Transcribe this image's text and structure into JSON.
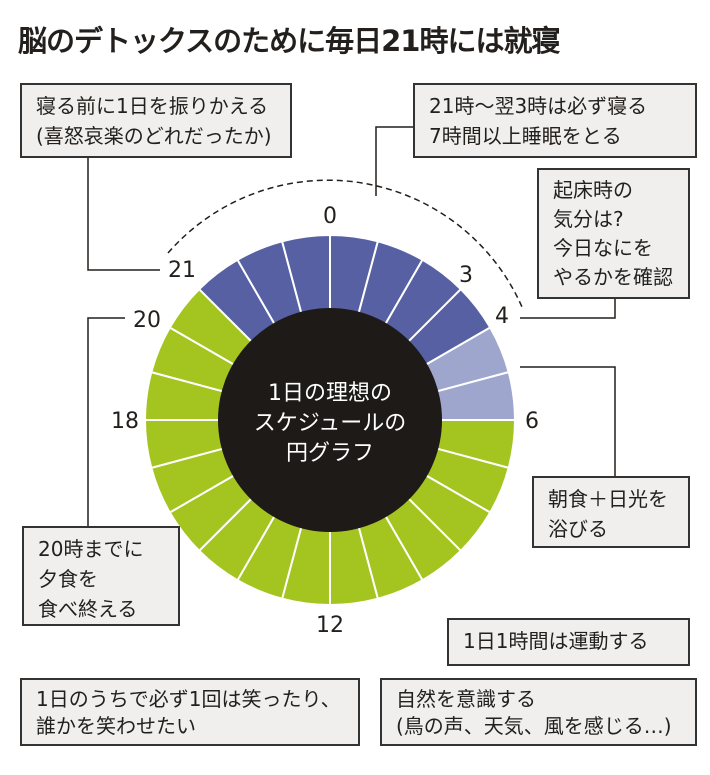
{
  "title": "脳のデトックスのために毎日21時には就寝",
  "colors": {
    "sleep": "#5660a2",
    "wake": "#9fa6cd",
    "active": "#a4c41f",
    "center": "#1e1a18",
    "box_bg": "#f0efed"
  },
  "chart_data": {
    "type": "pie",
    "center_label": [
      "1日の理想の",
      "スケジュールの",
      "円グラフ"
    ],
    "hours": 24,
    "segments": [
      {
        "from": 21,
        "to": 4,
        "color": "sleep"
      },
      {
        "from": 4,
        "to": 6,
        "color": "wake"
      },
      {
        "from": 6,
        "to": 21,
        "color": "active"
      }
    ],
    "tick_labels": [
      "0",
      "3",
      "4",
      "6",
      "12",
      "18",
      "20",
      "21"
    ]
  },
  "notes": [
    {
      "lines": [
        "寝る前に1日を振りかえる",
        "(喜怒哀楽のどれだったか)"
      ]
    },
    {
      "lines": [
        "21時〜翌3時は必ず寝る",
        "7時間以上睡眠をとる"
      ]
    },
    {
      "lines": [
        "起床時の",
        "気分は?",
        "今日なにを",
        "やるかを確認"
      ]
    },
    {
      "lines": [
        "朝食＋日光を",
        "浴びる"
      ]
    },
    {
      "lines": [
        "20時までに",
        "夕食を",
        "食べ終える"
      ]
    },
    {
      "lines": [
        "1日1時間は運動する"
      ]
    },
    {
      "lines": [
        "1日のうちで必ず1回は笑ったり、",
        "誰かを笑わせたい"
      ]
    },
    {
      "lines": [
        "自然を意識する",
        "(鳥の声、天気、風を感じる…)"
      ]
    }
  ]
}
